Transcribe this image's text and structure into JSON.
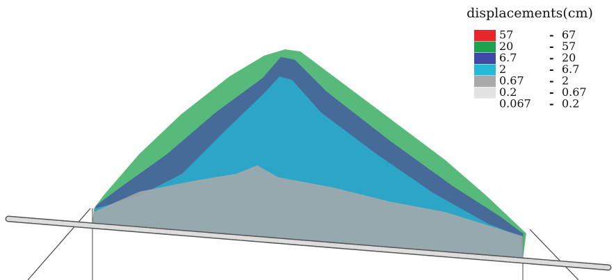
{
  "legend": {
    "title": "displacements(cm)",
    "rows": [
      {
        "from": "57",
        "separator": "-",
        "to": "67",
        "color": "#e8262b"
      },
      {
        "from": "20",
        "separator": "-",
        "to": "57",
        "color": "#1fa24e"
      },
      {
        "from": "6.7",
        "separator": "-",
        "to": "20",
        "color": "#3f4aa6"
      },
      {
        "from": "2",
        "separator": "-",
        "to": "6.7",
        "color": "#26b8d6"
      },
      {
        "from": "0.67",
        "separator": "-",
        "to": "2",
        "color": "#a9a9a9"
      },
      {
        "from": "0.2",
        "separator": "-",
        "to": "0.67",
        "color": "#e2e2e2"
      },
      {
        "from": "0.067",
        "separator": "-",
        "to": "0.2",
        "color": "#ffffff"
      }
    ]
  }
}
